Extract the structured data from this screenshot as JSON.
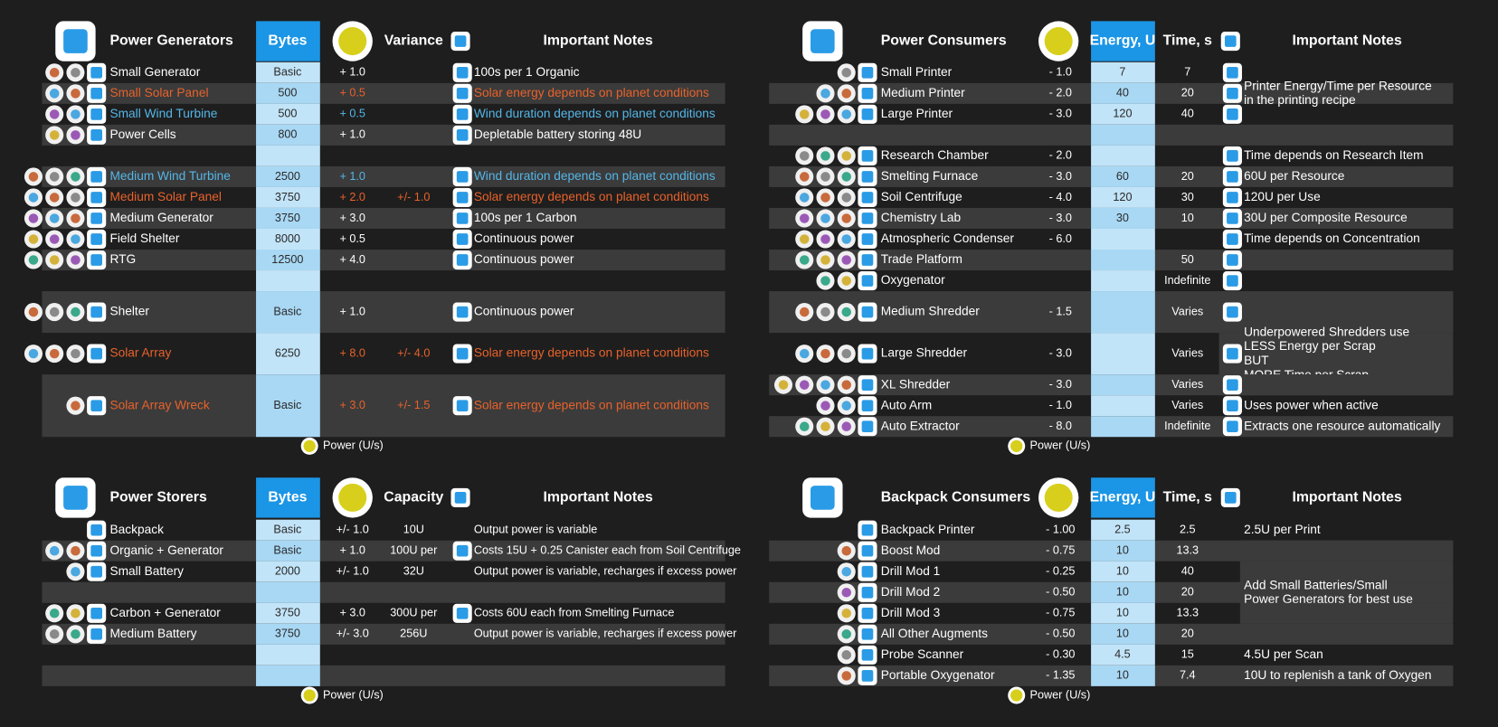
{
  "panels": [
    {
      "columns": [
        "Power Generators",
        "Bytes",
        null,
        "Variance",
        "Important Notes"
      ],
      "footer": "Power (U/s)",
      "rows": [
        {
          "cells": [
            "Small Generator",
            "Basic",
            "+ 1.0",
            null,
            "100s per 1 Organic"
          ]
        },
        {
          "cells": [
            "Small Solar Panel",
            "500",
            "+ 0.5",
            null,
            "Solar energy depends on planet conditions"
          ],
          "color": "#e8622a"
        },
        {
          "cells": [
            "Small Wind Turbine",
            "500",
            "+ 0.5",
            null,
            "Wind duration depends on planet conditions"
          ],
          "color": "#54b6e8"
        },
        {
          "cells": [
            "Power Cells",
            "800",
            "+ 1.0",
            null,
            "Depletable battery storing 48U"
          ]
        },
        {
          "cells": [
            null,
            null,
            null,
            null,
            null
          ]
        },
        {
          "cells": [
            "Medium Wind Turbine",
            "2500",
            "+ 1.0",
            null,
            "Wind duration depends on planet conditions"
          ],
          "color": "#54b6e8"
        },
        {
          "cells": [
            "Medium Solar Panel",
            "3750",
            "+ 2.0",
            "+/- 1.0",
            "Solar energy depends on planet conditions"
          ],
          "color": "#e8622a"
        },
        {
          "cells": [
            "Medium Generator",
            "3750",
            "+ 3.0",
            null,
            "100s per 1 Carbon"
          ]
        },
        {
          "cells": [
            "Field Shelter",
            "8000",
            "+ 0.5",
            null,
            "Continuous power"
          ]
        },
        {
          "cells": [
            "RTG",
            "12500",
            "+ 4.0",
            null,
            "Continuous power"
          ]
        },
        {
          "cells": [
            null,
            null,
            null,
            null,
            null
          ]
        },
        {
          "cells": [
            "Shelter",
            "Basic",
            "+ 1.0",
            null,
            "Continuous power"
          ]
        },
        {
          "cells": [
            "Solar Array",
            "6250",
            "+ 8.0",
            "+/- 4.0",
            "Solar energy depends on planet conditions"
          ],
          "color": "#e8622a"
        },
        {
          "cells": [
            "Solar Array Wreck",
            "Basic",
            "+ 3.0",
            "+/- 1.5",
            "Solar energy depends on planet conditions"
          ],
          "color": "#e8622a"
        }
      ]
    },
    {
      "columns": [
        "Power Consumers",
        null,
        "Energy, U",
        "Time, s",
        "Important Notes"
      ],
      "footer": "Power (U/s)",
      "rows": [
        {
          "cells": [
            "Small Printer",
            "- 1.0",
            "7",
            "7",
            null
          ]
        },
        {
          "cells": [
            "Medium Printer",
            "- 2.0",
            "40",
            "20",
            [
              "Printer Energy/Time per Resource",
              "in the printing recipe"
            ]
          ]
        },
        {
          "cells": [
            "Large Printer",
            "- 3.0",
            "120",
            "40",
            null
          ]
        },
        {
          "cells": [
            null,
            null,
            null,
            null,
            null
          ]
        },
        {
          "cells": [
            "Research Chamber",
            "- 2.0",
            null,
            null,
            "Time depends on Research Item"
          ]
        },
        {
          "cells": [
            "Smelting Furnace",
            "- 3.0",
            "60",
            "20",
            "60U per Resource"
          ]
        },
        {
          "cells": [
            "Soil Centrifuge",
            "- 4.0",
            "120",
            "30",
            "120U per Use"
          ]
        },
        {
          "cells": [
            "Chemistry Lab",
            "- 3.0",
            "30",
            "10",
            "30U per Composite Resource"
          ]
        },
        {
          "cells": [
            "Atmospheric Condenser",
            "- 6.0",
            null,
            null,
            "Time depends on Concentration"
          ]
        },
        {
          "cells": [
            "Trade Platform",
            null,
            null,
            "50",
            null
          ]
        },
        {
          "cells": [
            "Oxygenator",
            null,
            null,
            "Indefinite",
            null
          ]
        },
        {
          "cells": [
            "Medium Shredder",
            "- 1.5",
            null,
            "Varies",
            null
          ]
        },
        {
          "cells": [
            "Large Shredder",
            "- 3.0",
            null,
            "Varies",
            [
              "Underpowered Shredders use",
              "LESS Energy per Scrap",
              "BUT",
              "MORE Time per Scrap"
            ]
          ]
        },
        {
          "cells": [
            "XL Shredder",
            "- 3.0",
            null,
            "Varies",
            null
          ]
        },
        {
          "cells": [
            "Auto Arm",
            "- 1.0",
            null,
            "Varies",
            "Uses power when active"
          ]
        },
        {
          "cells": [
            "Auto Extractor",
            "- 8.0",
            null,
            "Indefinite",
            "Extracts one resource automatically"
          ]
        }
      ]
    },
    {
      "columns": [
        "Power Storers",
        "Bytes",
        null,
        "Capacity",
        "Important Notes"
      ],
      "footer": "Power (U/s)",
      "rows": [
        {
          "cells": [
            "Backpack",
            "Basic",
            "+/- 1.0",
            "10U",
            "Output power is variable"
          ]
        },
        {
          "cells": [
            "Organic + Generator",
            "Basic",
            "+ 1.0",
            "100U per",
            "Costs 15U + 0.25 Canister each from Soil Centrifuge"
          ]
        },
        {
          "cells": [
            "Small Battery",
            "2000",
            "+/- 1.0",
            "32U",
            "Output power is variable, recharges if excess power"
          ]
        },
        {
          "cells": [
            null,
            null,
            null,
            null,
            null
          ]
        },
        {
          "cells": [
            "Carbon + Generator",
            "3750",
            "+ 3.0",
            "300U per",
            "Costs 60U each from Smelting Furnace"
          ]
        },
        {
          "cells": [
            "Medium Battery",
            "3750",
            "+/- 3.0",
            "256U",
            "Output power is variable, recharges if excess power"
          ]
        },
        {
          "cells": [
            null,
            null,
            null,
            null,
            null
          ]
        },
        {
          "cells": [
            null,
            null,
            null,
            null,
            null
          ]
        }
      ]
    },
    {
      "columns": [
        "Backpack Consumers",
        null,
        "Energy, U",
        "Time, s",
        "Important Notes"
      ],
      "footer": "Power (U/s)",
      "rows": [
        {
          "cells": [
            "Backpack Printer",
            "- 1.00",
            "2.5",
            "2.5",
            "2.5U per Print"
          ]
        },
        {
          "cells": [
            "Boost Mod",
            "- 0.75",
            "10",
            "13.3",
            null
          ]
        },
        {
          "cells": [
            "Drill Mod 1",
            "- 0.25",
            "10",
            "40",
            null
          ]
        },
        {
          "cells": [
            "Drill Mod 2",
            "- 0.50",
            "10",
            "20",
            [
              "Add Small Batteries/Small",
              "Power Generators for best use"
            ]
          ]
        },
        {
          "cells": [
            "Drill Mod 3",
            "- 0.75",
            "10",
            "13.3",
            null
          ]
        },
        {
          "cells": [
            "All Other Augments",
            "- 0.50",
            "10",
            "20",
            null
          ]
        },
        {
          "cells": [
            "Probe Scanner",
            "- 0.30",
            "4.5",
            "15",
            "4.5U per Scan"
          ]
        },
        {
          "cells": [
            "Portable Oxygenator",
            "- 1.35",
            "10",
            "7.4",
            "10U to replenish a tank of Oxygen"
          ]
        }
      ]
    }
  ]
}
